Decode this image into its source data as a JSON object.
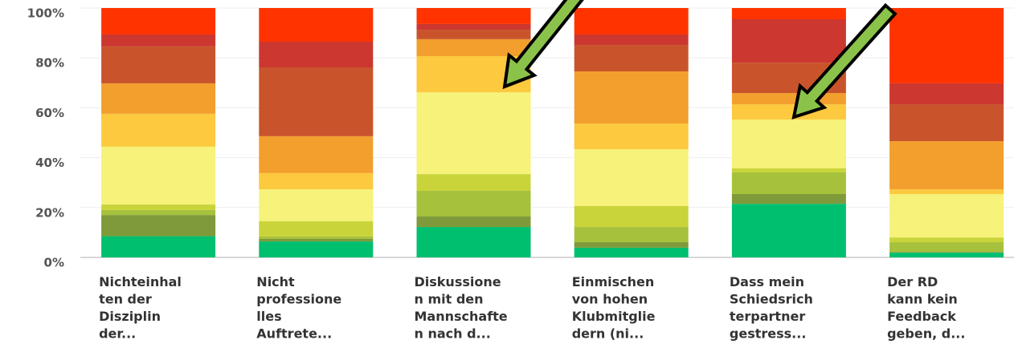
{
  "chart_data": {
    "type": "stacked_bar",
    "categories": [
      [
        "Nichteinhal",
        "ten der",
        "Disziplin",
        "der..."
      ],
      [
        "Nicht",
        "professione",
        "lles",
        "Auftrete..."
      ],
      [
        "Diskussione",
        "n mit den",
        "Mannschafte",
        "n nach d..."
      ],
      [
        "Einmischen",
        "von hohen",
        "Klubmitglie",
        "dern (ni..."
      ],
      [
        "Dass mein",
        "Schiedsrich",
        "terpartner",
        "gestress..."
      ],
      [
        "Der RD",
        "kann kein",
        "Feedback",
        "geben, d..."
      ]
    ],
    "series": [
      {
        "color": "#00bf6f",
        "values": [
          8.5,
          6.4,
          12.2,
          3.9,
          21.5,
          1.9
        ]
      },
      {
        "color": "#7f9a3a",
        "values": [
          8.5,
          1.0,
          4.2,
          2.2,
          3.9,
          0.3
        ]
      },
      {
        "color": "#a6c13c",
        "values": [
          2.0,
          1.0,
          10.3,
          6.1,
          8.7,
          3.9
        ]
      },
      {
        "color": "#c9d43a",
        "values": [
          2.2,
          6.1,
          6.7,
          8.4,
          1.6,
          1.9
        ]
      },
      {
        "color": "#f6f27a",
        "values": [
          23.2,
          12.8,
          32.8,
          22.8,
          19.6,
          17.4
        ]
      },
      {
        "color": "#fcc93f",
        "values": [
          13.2,
          6.5,
          14.5,
          10.3,
          6.1,
          1.9
        ]
      },
      {
        "color": "#f29f2e",
        "values": [
          12.2,
          14.8,
          6.8,
          20.9,
          4.5,
          19.3
        ]
      },
      {
        "color": "#c9542b",
        "values": [
          14.8,
          27.6,
          3.8,
          10.6,
          12.2,
          14.8
        ]
      },
      {
        "color": "#cc3730",
        "values": [
          4.8,
          10.3,
          2.3,
          4.2,
          17.4,
          8.4
        ]
      },
      {
        "color": "#ff3300",
        "values": [
          10.6,
          13.5,
          6.4,
          10.6,
          4.5,
          30.2
        ]
      }
    ],
    "ylim": [
      0,
      100
    ],
    "yticks": [
      {
        "value": 0,
        "label": "0%"
      },
      {
        "value": 20,
        "label": "20%"
      },
      {
        "value": 40,
        "label": "40%"
      },
      {
        "value": 60,
        "label": "60%"
      },
      {
        "value": 80,
        "label": "80%"
      },
      {
        "value": 100,
        "label": "100%"
      }
    ],
    "grid": true
  }
}
